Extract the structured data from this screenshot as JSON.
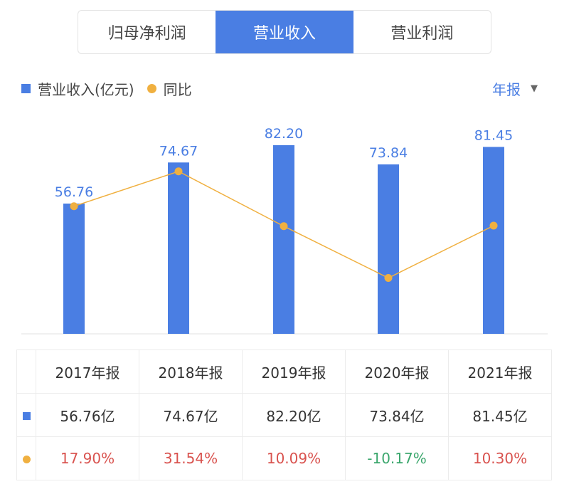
{
  "tabs": [
    {
      "label": "归母净利润",
      "active": false
    },
    {
      "label": "营业收入",
      "active": true
    },
    {
      "label": "营业利润",
      "active": false
    }
  ],
  "legend": {
    "bar_label": "营业收入(亿元)",
    "line_label": "同比"
  },
  "period": {
    "label": "年报",
    "arrow": "▼"
  },
  "colors": {
    "bar": "#4a7ee3",
    "line": "#f0b040",
    "up": "#d9534f",
    "down": "#3aa66c"
  },
  "chart_data": {
    "type": "bar+line",
    "categories": [
      "2017年报",
      "2018年报",
      "2019年报",
      "2020年报",
      "2021年报"
    ],
    "series": [
      {
        "name": "营业收入(亿元)",
        "type": "bar",
        "values": [
          56.76,
          74.67,
          82.2,
          73.84,
          81.45
        ],
        "labels": [
          "56.76",
          "74.67",
          "82.20",
          "73.84",
          "81.45"
        ]
      },
      {
        "name": "同比",
        "type": "line",
        "values": [
          17.9,
          31.54,
          10.09,
          -10.17,
          10.3
        ]
      }
    ],
    "grid": false
  },
  "table": {
    "headers": [
      "2017年报",
      "2018年报",
      "2019年报",
      "2020年报",
      "2021年报"
    ],
    "revenue": [
      "56.76亿",
      "74.67亿",
      "82.20亿",
      "73.84亿",
      "81.45亿"
    ],
    "yoy": [
      "17.90%",
      "31.54%",
      "10.09%",
      "-10.17%",
      "10.30%"
    ]
  }
}
